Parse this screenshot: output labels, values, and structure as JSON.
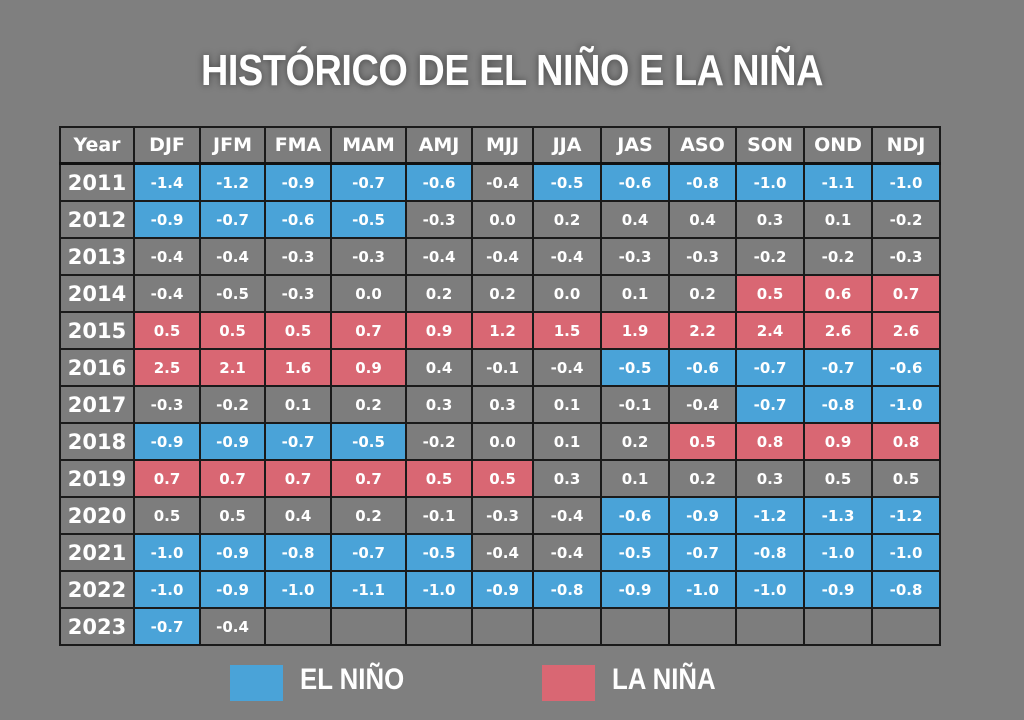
{
  "title": "HISTÓRICO DE EL NIÑO E LA NIÑA",
  "colors": {
    "el_nino": "#4aa3d8",
    "la_nina": "#d96773",
    "neutral": "#7d7d7d",
    "background": "#7f7f7f"
  },
  "legend": [
    {
      "label": "EL NIÑO",
      "color": "#4aa3d8"
    },
    {
      "label": "LA NIÑA",
      "color": "#d96773"
    }
  ],
  "chart_data": {
    "type": "table",
    "title": "HISTÓRICO DE EL NIÑO E LA NIÑA",
    "columns": [
      "Year",
      "DJF",
      "JFM",
      "FMA",
      "MAM",
      "AMJ",
      "MJJ",
      "JJA",
      "JAS",
      "ASO",
      "SON",
      "OND",
      "NDJ"
    ],
    "state_codes": {
      "n": "EL NIÑO",
      "l": "LA NIÑA",
      "": "neutral"
    },
    "rows": [
      {
        "year": "2011",
        "values": [
          "-1.4",
          "-1.2",
          "-0.9",
          "-0.7",
          "-0.6",
          "-0.4",
          "-0.5",
          "-0.6",
          "-0.8",
          "-1.0",
          "-1.1",
          "-1.0"
        ],
        "state": [
          "n",
          "n",
          "n",
          "n",
          "n",
          "",
          "n",
          "n",
          "n",
          "n",
          "n",
          "n"
        ]
      },
      {
        "year": "2012",
        "values": [
          "-0.9",
          "-0.7",
          "-0.6",
          "-0.5",
          "-0.3",
          "0.0",
          "0.2",
          "0.4",
          "0.4",
          "0.3",
          "0.1",
          "-0.2"
        ],
        "state": [
          "n",
          "n",
          "n",
          "n",
          "",
          "",
          "",
          "",
          "",
          "",
          "",
          ""
        ]
      },
      {
        "year": "2013",
        "values": [
          "-0.4",
          "-0.4",
          "-0.3",
          "-0.3",
          "-0.4",
          "-0.4",
          "-0.4",
          "-0.3",
          "-0.3",
          "-0.2",
          "-0.2",
          "-0.3"
        ],
        "state": [
          "",
          "",
          "",
          "",
          "",
          "",
          "",
          "",
          "",
          "",
          "",
          ""
        ]
      },
      {
        "year": "2014",
        "values": [
          "-0.4",
          "-0.5",
          "-0.3",
          "0.0",
          "0.2",
          "0.2",
          "0.0",
          "0.1",
          "0.2",
          "0.5",
          "0.6",
          "0.7"
        ],
        "state": [
          "",
          "",
          "",
          "",
          "",
          "",
          "",
          "",
          "",
          "l",
          "l",
          "l"
        ]
      },
      {
        "year": "2015",
        "values": [
          "0.5",
          "0.5",
          "0.5",
          "0.7",
          "0.9",
          "1.2",
          "1.5",
          "1.9",
          "2.2",
          "2.4",
          "2.6",
          "2.6"
        ],
        "state": [
          "l",
          "l",
          "l",
          "l",
          "l",
          "l",
          "l",
          "l",
          "l",
          "l",
          "l",
          "l"
        ]
      },
      {
        "year": "2016",
        "values": [
          "2.5",
          "2.1",
          "1.6",
          "0.9",
          "0.4",
          "-0.1",
          "-0.4",
          "-0.5",
          "-0.6",
          "-0.7",
          "-0.7",
          "-0.6"
        ],
        "state": [
          "l",
          "l",
          "l",
          "l",
          "",
          "",
          "",
          "n",
          "n",
          "n",
          "n",
          "n"
        ]
      },
      {
        "year": "2017",
        "values": [
          "-0.3",
          "-0.2",
          "0.1",
          "0.2",
          "0.3",
          "0.3",
          "0.1",
          "-0.1",
          "-0.4",
          "-0.7",
          "-0.8",
          "-1.0"
        ],
        "state": [
          "",
          "",
          "",
          "",
          "",
          "",
          "",
          "",
          "",
          "n",
          "n",
          "n"
        ]
      },
      {
        "year": "2018",
        "values": [
          "-0.9",
          "-0.9",
          "-0.7",
          "-0.5",
          "-0.2",
          "0.0",
          "0.1",
          "0.2",
          "0.5",
          "0.8",
          "0.9",
          "0.8"
        ],
        "state": [
          "n",
          "n",
          "n",
          "n",
          "",
          "",
          "",
          "",
          "l",
          "l",
          "l",
          "l"
        ]
      },
      {
        "year": "2019",
        "values": [
          "0.7",
          "0.7",
          "0.7",
          "0.7",
          "0.5",
          "0.5",
          "0.3",
          "0.1",
          "0.2",
          "0.3",
          "0.5",
          "0.5"
        ],
        "state": [
          "l",
          "l",
          "l",
          "l",
          "l",
          "l",
          "",
          "",
          "",
          "",
          "",
          ""
        ]
      },
      {
        "year": "2020",
        "values": [
          "0.5",
          "0.5",
          "0.4",
          "0.2",
          "-0.1",
          "-0.3",
          "-0.4",
          "-0.6",
          "-0.9",
          "-1.2",
          "-1.3",
          "-1.2"
        ],
        "state": [
          "",
          "",
          "",
          "",
          "",
          "",
          "",
          "n",
          "n",
          "n",
          "n",
          "n"
        ]
      },
      {
        "year": "2021",
        "values": [
          "-1.0",
          "-0.9",
          "-0.8",
          "-0.7",
          "-0.5",
          "-0.4",
          "-0.4",
          "-0.5",
          "-0.7",
          "-0.8",
          "-1.0",
          "-1.0"
        ],
        "state": [
          "n",
          "n",
          "n",
          "n",
          "n",
          "",
          "",
          "n",
          "n",
          "n",
          "n",
          "n"
        ]
      },
      {
        "year": "2022",
        "values": [
          "-1.0",
          "-0.9",
          "-1.0",
          "-1.1",
          "-1.0",
          "-0.9",
          "-0.8",
          "-0.9",
          "-1.0",
          "-1.0",
          "-0.9",
          "-0.8"
        ],
        "state": [
          "n",
          "n",
          "n",
          "n",
          "n",
          "n",
          "n",
          "n",
          "n",
          "n",
          "n",
          "n"
        ]
      },
      {
        "year": "2023",
        "values": [
          "-0.7",
          "-0.4",
          "",
          "",
          "",
          "",
          "",
          "",
          "",
          "",
          "",
          ""
        ],
        "state": [
          "n",
          "",
          "",
          "",
          "",
          "",
          "",
          "",
          "",
          "",
          "",
          ""
        ]
      }
    ]
  }
}
